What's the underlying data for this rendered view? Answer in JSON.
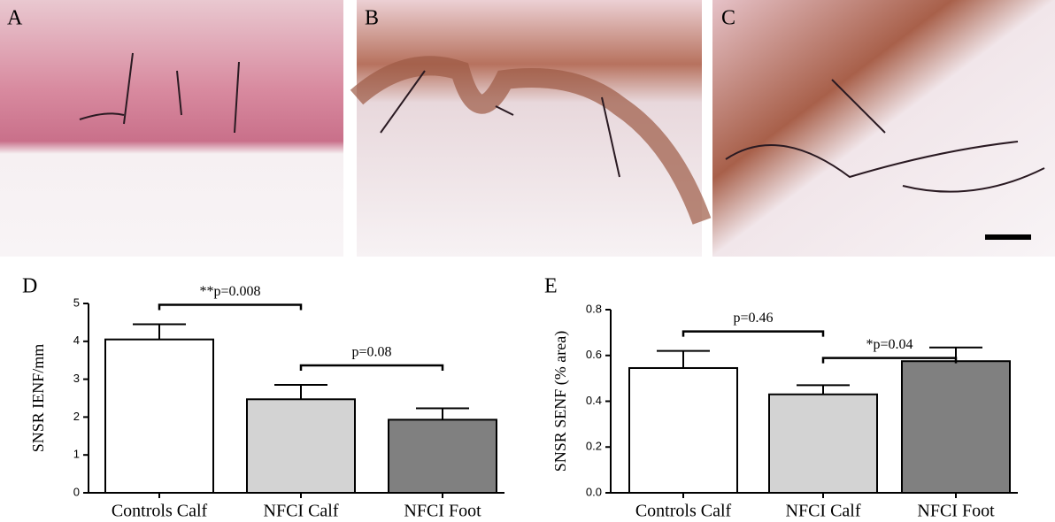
{
  "image_panels": {
    "labels": [
      "A",
      "B",
      "C"
    ]
  },
  "chart_data": [
    {
      "type": "bar",
      "panel": "D",
      "ylabel": "SNSR IENF/mm",
      "categories": [
        "Controls Calf",
        "NFCI Calf",
        "NFCI Foot"
      ],
      "values": [
        4.05,
        2.47,
        1.93
      ],
      "errors": [
        0.4,
        0.38,
        0.3
      ],
      "colors": [
        "#ffffff",
        "#d3d3d3",
        "#808080"
      ],
      "ylim": [
        0,
        5
      ],
      "yticks": [
        0,
        1,
        2,
        3,
        4,
        5
      ],
      "comparisons": [
        {
          "label": "**p=0.008",
          "groups": [
            "Controls Calf",
            "NFCI Calf"
          ]
        },
        {
          "label": "p=0.08",
          "groups": [
            "NFCI Calf",
            "NFCI Foot"
          ]
        }
      ]
    },
    {
      "type": "bar",
      "panel": "E",
      "ylabel": "SNSR SENF (% area)",
      "categories": [
        "Controls Calf",
        "NFCI Calf",
        "NFCI Foot"
      ],
      "values": [
        0.545,
        0.43,
        0.575
      ],
      "errors": [
        0.075,
        0.04,
        0.06
      ],
      "colors": [
        "#ffffff",
        "#d3d3d3",
        "#808080"
      ],
      "ylim": [
        0,
        0.8
      ],
      "yticks": [
        {
          "value": 0,
          "label": "0.0"
        },
        0.2,
        0.4,
        0.6,
        0.8
      ],
      "comparisons": [
        {
          "label": "p=0.46",
          "groups": [
            "Controls Calf",
            "NFCI Calf"
          ]
        },
        {
          "label": "*p=0.04",
          "groups": [
            "NFCI Calf",
            "NFCI Foot"
          ]
        }
      ]
    }
  ]
}
